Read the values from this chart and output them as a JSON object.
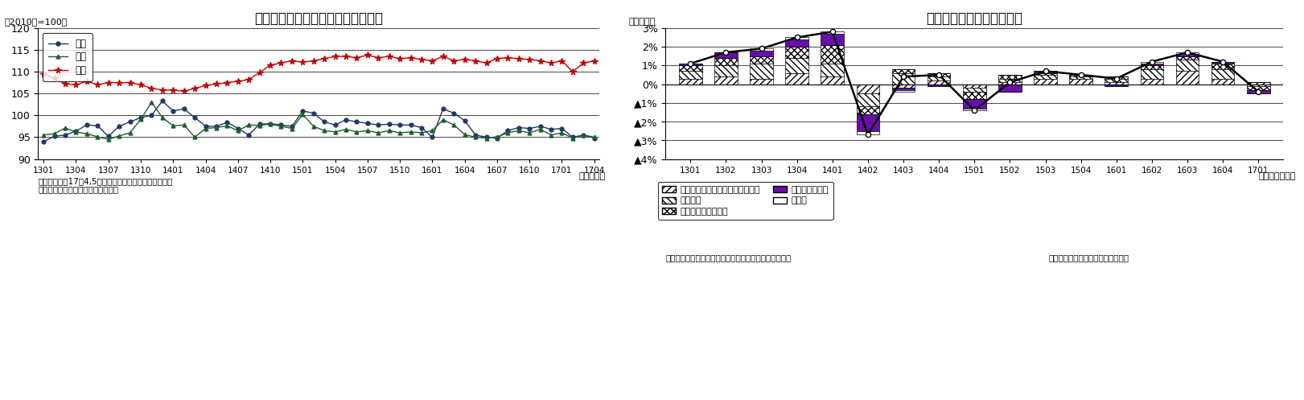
{
  "left_title": "鉱工業生産・出荷・在庫指数の推移",
  "left_ylabel": "（2010年=100）",
  "left_xlabel": "（年・月）",
  "left_note1": "（注）生産の17年4,5月は製造工業生産予測指数で延長",
  "left_note2": "（資料）経済産業省「鉱工業指数」",
  "left_ylim": [
    90,
    120
  ],
  "left_yticks": [
    90,
    95,
    100,
    105,
    110,
    115,
    120
  ],
  "left_xtick_labels": [
    "1301",
    "1304",
    "1307",
    "1310",
    "1401",
    "1404",
    "1407",
    "1410",
    "1501",
    "1504",
    "1507",
    "1510",
    "1601",
    "1604",
    "1607",
    "1610",
    "1701",
    "1704"
  ],
  "left_xtick_pos": [
    0,
    3,
    6,
    9,
    12,
    15,
    18,
    21,
    24,
    27,
    30,
    33,
    36,
    39,
    42,
    45,
    48,
    51
  ],
  "seisan": [
    94.0,
    95.2,
    95.5,
    96.4,
    97.8,
    97.6,
    95.2,
    97.5,
    98.5,
    99.5,
    100.0,
    103.3,
    101.0,
    101.5,
    99.5,
    97.5,
    97.5,
    98.4,
    97.0,
    95.5,
    98.0,
    98.1,
    97.8,
    97.5,
    101.0,
    100.5,
    98.5,
    97.8,
    99.0,
    98.5,
    98.2,
    97.8,
    98.0,
    97.8,
    97.8,
    97.2,
    95.0,
    101.5,
    100.5,
    98.8,
    95.5,
    95.0,
    94.8,
    96.5,
    97.2,
    97.0,
    97.5,
    96.8,
    97.0,
    95.0,
    95.5,
    94.8
  ],
  "desho": [
    95.5,
    95.8,
    97.1,
    96.2,
    95.8,
    95.1,
    94.5,
    95.3,
    96.0,
    99.1,
    103.0,
    99.5,
    97.6,
    97.8,
    95.0,
    97.0,
    97.2,
    97.6,
    96.5,
    97.8,
    97.7,
    98.0,
    97.5,
    97.0,
    100.2,
    97.5,
    96.5,
    96.2,
    96.8,
    96.2,
    96.5,
    96.0,
    96.5,
    96.0,
    96.2,
    96.0,
    96.5,
    99.0,
    97.8,
    95.6,
    95.0,
    94.8,
    95.1,
    96.0,
    96.5,
    96.0,
    96.8,
    95.5,
    96.0,
    94.8,
    95.5,
    95.0
  ],
  "zaiko": [
    109.5,
    108.5,
    107.2,
    107.0,
    107.8,
    107.0,
    107.5,
    107.5,
    107.5,
    107.0,
    106.2,
    105.8,
    105.8,
    105.5,
    106.2,
    106.8,
    107.2,
    107.5,
    107.8,
    108.2,
    109.8,
    111.5,
    112.0,
    112.5,
    112.2,
    112.5,
    113.0,
    113.5,
    113.5,
    113.2,
    113.8,
    113.2,
    113.5,
    113.0,
    113.2,
    112.8,
    112.5,
    113.5,
    112.5,
    112.8,
    112.5,
    112.0,
    113.0,
    113.2,
    113.0,
    112.8,
    112.5,
    112.0,
    112.5,
    110.0,
    112.0,
    112.5
  ],
  "right_title": "鉱工業生産の業種別寄与度",
  "right_ylabel": "（前期比）",
  "right_xlabel": "（年・四半期）",
  "right_note1": "（注）その他電気機械は電気機械、情報通信機械を合成",
  "right_note2": "（資料）経済産業省「鉱工業指数」",
  "right_ylim": [
    -0.04,
    0.03
  ],
  "right_yticks": [
    0.03,
    0.02,
    0.01,
    0.0,
    -0.01,
    -0.02,
    -0.03,
    -0.04
  ],
  "right_yticklabels": [
    "3%",
    "2%",
    "1%",
    "0%",
    "▲1%",
    "▲2%",
    "▲3%",
    "▲4%"
  ],
  "right_xticks": [
    "1301",
    "1302",
    "1303",
    "1304",
    "1401",
    "1402",
    "1403",
    "1404",
    "1501",
    "1502",
    "1503",
    "1504",
    "1601",
    "1602",
    "1603",
    "1604",
    "1701"
  ],
  "hanyo": [
    0.003,
    0.004,
    0.003,
    0.006,
    0.004,
    -0.005,
    -0.002,
    0.002,
    -0.002,
    0.001,
    0.003,
    0.003,
    0.001,
    0.003,
    0.007,
    0.003,
    0.001
  ],
  "yuso": [
    0.004,
    0.006,
    0.008,
    0.008,
    0.007,
    -0.007,
    0.006,
    0.002,
    -0.002,
    0.002,
    0.002,
    0.001,
    0.002,
    0.005,
    0.006,
    0.005,
    -0.001
  ],
  "denshi": [
    0.003,
    0.004,
    0.004,
    0.006,
    0.01,
    -0.004,
    0.002,
    0.002,
    -0.004,
    0.002,
    0.001,
    0.001,
    0.001,
    0.002,
    0.002,
    0.003,
    -0.002
  ],
  "sonota_elec": [
    0.001,
    0.003,
    0.003,
    0.004,
    0.006,
    -0.009,
    -0.001,
    -0.001,
    -0.005,
    -0.004,
    0.001,
    0.0,
    -0.001,
    0.001,
    0.001,
    0.001,
    -0.002
  ],
  "sonota": [
    0.0,
    0.0,
    0.001,
    0.001,
    0.001,
    -0.002,
    -0.001,
    0.0,
    -0.001,
    0.0,
    0.0,
    0.0,
    0.0,
    0.001,
    0.001,
    0.0,
    0.0
  ],
  "total_line": [
    0.011,
    0.017,
    0.019,
    0.025,
    0.028,
    -0.027,
    0.004,
    0.005,
    -0.014,
    0.001,
    0.007,
    0.005,
    0.003,
    0.012,
    0.017,
    0.012,
    -0.004
  ]
}
